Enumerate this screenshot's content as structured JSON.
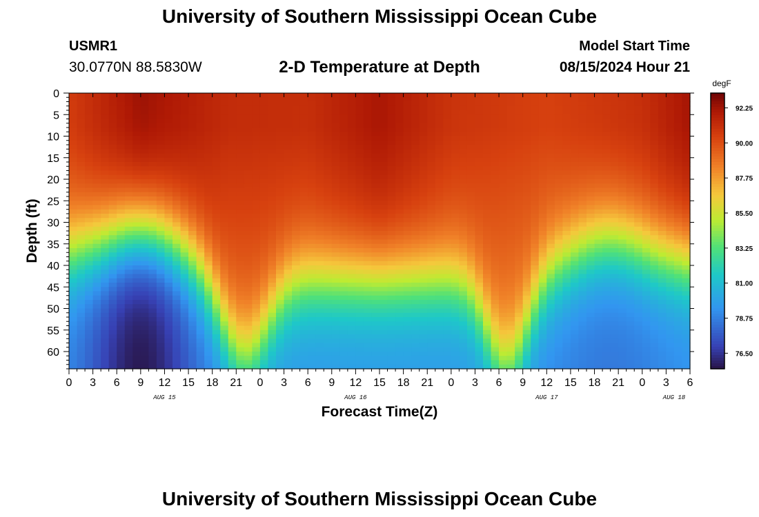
{
  "header": {
    "title": "University of Southern Mississippi Ocean Cube",
    "station": "USMR1",
    "location": "30.0770N  88.5830W",
    "plot_title": "2-D Temperature at Depth",
    "model_start_label": "Model Start Time",
    "model_start_value": "08/15/2024 Hour 21"
  },
  "footer": {
    "title": "University of Southern Mississippi Ocean Cube"
  },
  "colors": {
    "background": "#ffffff",
    "axis": "#000000"
  },
  "chart_data": {
    "type": "heatmap",
    "title": "2-D Temperature at Depth",
    "xlabel": "Forecast Time(Z)",
    "ylabel": "Depth (ft)",
    "x_tick_labels": [
      "0",
      "3",
      "6",
      "9",
      "12",
      "15",
      "18",
      "21",
      "0",
      "3",
      "6",
      "9",
      "12",
      "15",
      "18",
      "21",
      "0",
      "3",
      "6",
      "9",
      "12",
      "15",
      "18",
      "21",
      "0",
      "3",
      "6"
    ],
    "x_range_hours": [
      0,
      78
    ],
    "day_labels": [
      {
        "label": "AUG 15",
        "hour": 12
      },
      {
        "label": "AUG 16",
        "hour": 36
      },
      {
        "label": "AUG 17",
        "hour": 60
      },
      {
        "label": "AUG 18",
        "hour": 76
      }
    ],
    "y_tick_labels": [
      "0",
      "5",
      "10",
      "15",
      "20",
      "25",
      "30",
      "35",
      "40",
      "45",
      "50",
      "55",
      "60"
    ],
    "ylim_ft": [
      0,
      64
    ],
    "y_inverted": true,
    "colorbar": {
      "unit": "degF",
      "ticks": [
        "92.25",
        "90.00",
        "87.75",
        "85.50",
        "83.25",
        "81.00",
        "78.75",
        "76.50"
      ],
      "range": [
        75.5,
        93.2
      ]
    },
    "surface_temps_hours": [
      0,
      9,
      20,
      30,
      39,
      48,
      60,
      72,
      78
    ],
    "surface_temps_degF": [
      90.6,
      92.4,
      91.2,
      91.1,
      92.1,
      90.9,
      90.4,
      91.1,
      92.2
    ],
    "thermocline_minima": [
      {
        "hour": 9,
        "bottom_degF": 75.6
      },
      {
        "hour": 68,
        "bottom_degF": 78.5
      }
    ],
    "thermocline_crests_hours": [
      22,
      55
    ]
  }
}
